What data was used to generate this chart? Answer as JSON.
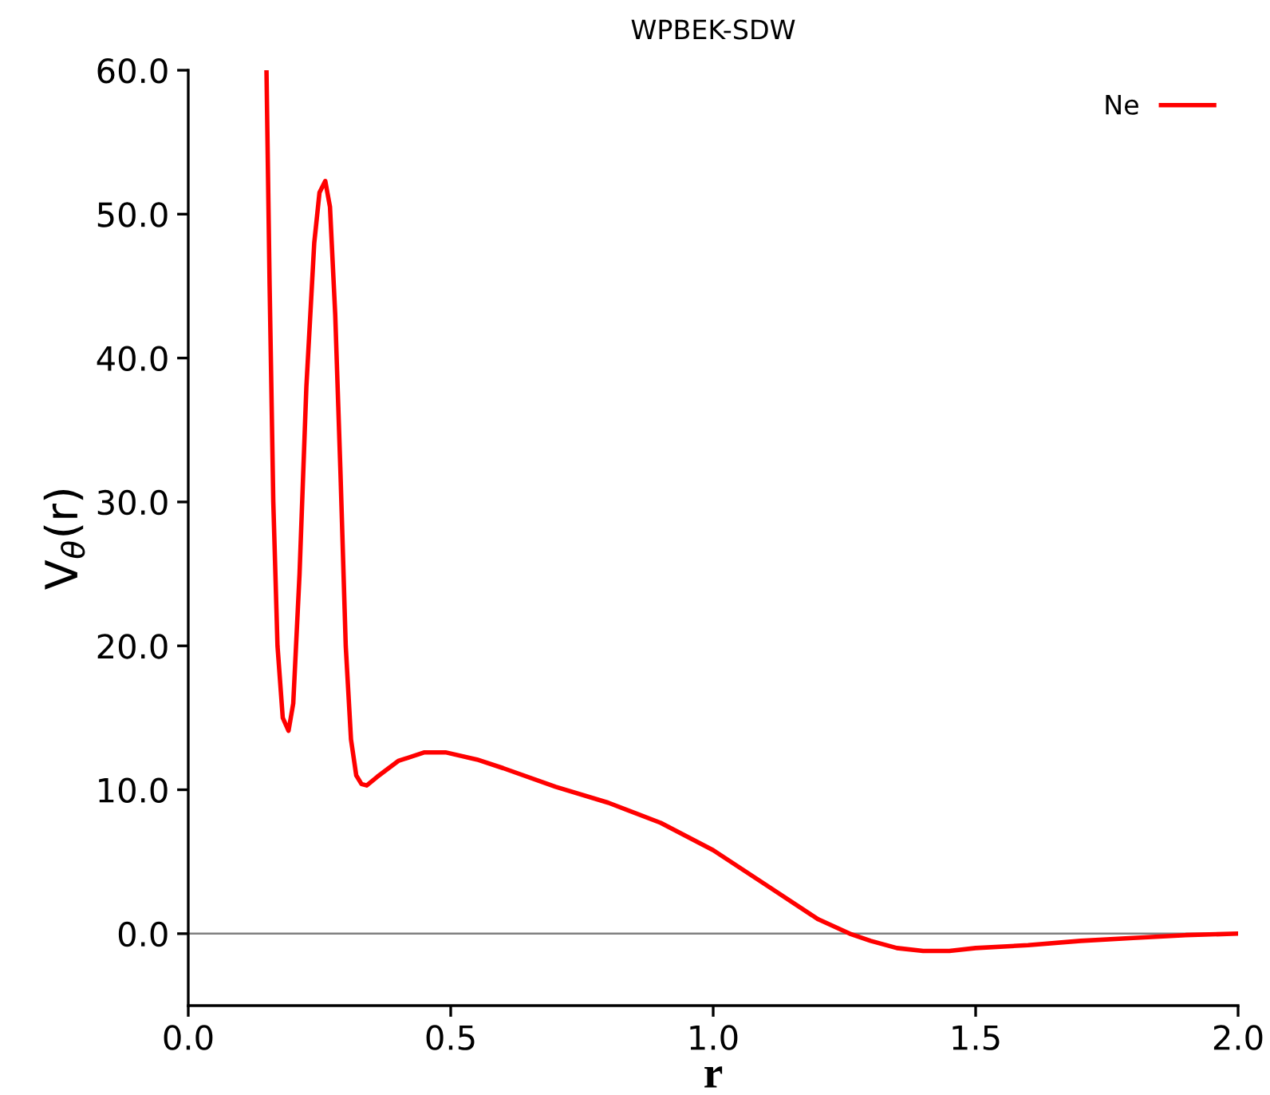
{
  "chart_data": {
    "type": "line",
    "title": "WPBEK-SDW",
    "xlabel": "r",
    "ylabel": "V$_{θ}$(r)",
    "xlim": [
      0,
      2
    ],
    "ylim": [
      -5,
      60
    ],
    "xticks": [
      {
        "value": 0,
        "label": "0.0"
      },
      {
        "value": 0.5,
        "label": "0.5"
      },
      {
        "value": 1,
        "label": "1.0"
      },
      {
        "value": 1.5,
        "label": "1.5"
      },
      {
        "value": 2,
        "label": "2.0"
      }
    ],
    "yticks": [
      {
        "value": 0,
        "label": "0.0"
      },
      {
        "value": 10,
        "label": "10.0"
      },
      {
        "value": 20,
        "label": "20.0"
      },
      {
        "value": 30,
        "label": "30.0"
      },
      {
        "value": 40,
        "label": "40.0"
      },
      {
        "value": 50,
        "label": "50.0"
      },
      {
        "value": 60,
        "label": "60.0"
      }
    ],
    "ref_lines": [
      {
        "axis": "y",
        "value": 0,
        "color": "#808080"
      }
    ],
    "legend": "top right",
    "grid": false,
    "series": [
      {
        "name": "Ne",
        "color": "#ff0000",
        "x": [
          0.149,
          0.155,
          0.162,
          0.17,
          0.18,
          0.191,
          0.2,
          0.212,
          0.225,
          0.24,
          0.25,
          0.261,
          0.27,
          0.28,
          0.29,
          0.3,
          0.31,
          0.32,
          0.33,
          0.34,
          0.36,
          0.4,
          0.45,
          0.49,
          0.55,
          0.6,
          0.7,
          0.8,
          0.9,
          1.0,
          1.1,
          1.2,
          1.26,
          1.3,
          1.35,
          1.4,
          1.45,
          1.5,
          1.6,
          1.7,
          1.8,
          1.9,
          2.0
        ],
        "values": [
          60,
          45,
          30,
          20,
          15,
          14.1,
          16,
          25,
          38,
          48,
          51.5,
          52.3,
          50.5,
          43,
          32,
          20,
          13.5,
          11,
          10.4,
          10.3,
          10.9,
          12.0,
          12.6,
          12.6,
          12.1,
          11.5,
          10.2,
          9.1,
          7.7,
          5.8,
          3.4,
          1.0,
          0.0,
          -0.5,
          -1.0,
          -1.2,
          -1.2,
          -1.0,
          -0.8,
          -0.5,
          -0.3,
          -0.1,
          0.0
        ]
      }
    ]
  }
}
